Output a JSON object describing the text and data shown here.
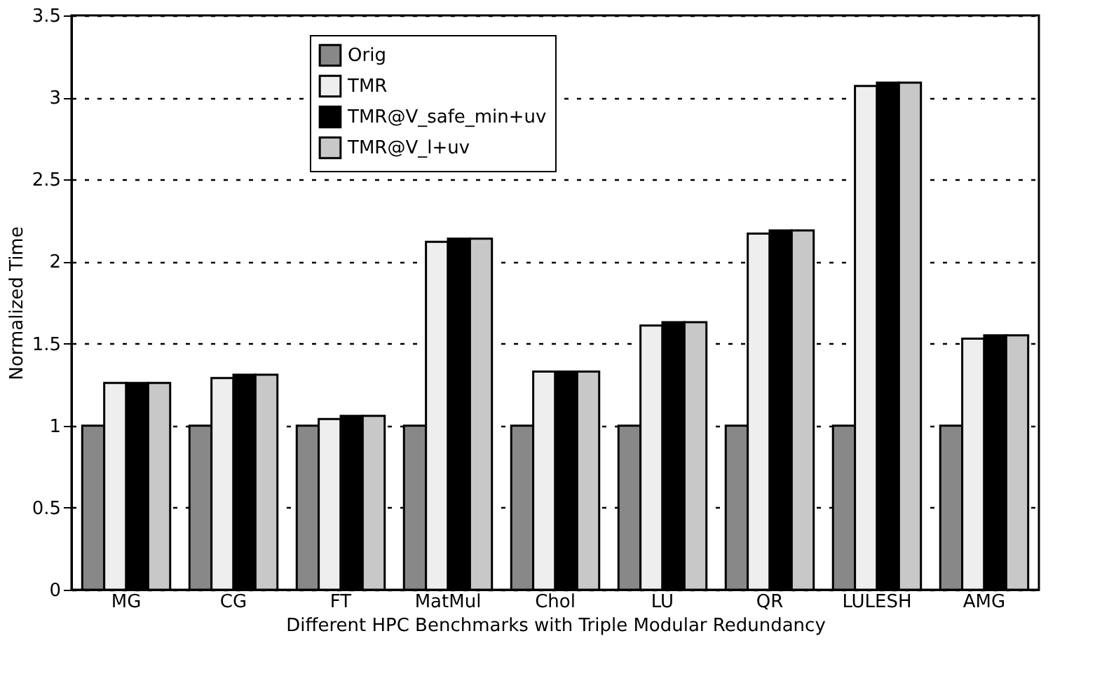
{
  "chart_data": {
    "type": "bar",
    "xlabel": "Different HPC Benchmarks with Triple Modular Redundancy",
    "ylabel": "Normalized Time",
    "categories": [
      "MG",
      "CG",
      "FT",
      "MatMul",
      "Chol",
      "LU",
      "QR",
      "LULESH",
      "AMG"
    ],
    "series": [
      {
        "name": "Orig",
        "color": "#888888",
        "values": [
          1,
          1,
          1,
          1,
          1,
          1,
          1,
          1,
          1
        ]
      },
      {
        "name": "TMR",
        "color": "#eeeeee",
        "values": [
          1.26,
          1.29,
          1.04,
          2.12,
          1.33,
          1.61,
          2.17,
          3.07,
          1.53
        ]
      },
      {
        "name": "TMR@V_safe_min+uv",
        "color": "#000000",
        "values": [
          1.26,
          1.31,
          1.06,
          2.14,
          1.33,
          1.63,
          2.19,
          3.09,
          1.55
        ]
      },
      {
        "name": "TMR@V_l+uv",
        "color": "#c8c8c8",
        "values": [
          1.26,
          1.31,
          1.06,
          2.14,
          1.33,
          1.63,
          2.19,
          3.09,
          1.55
        ]
      }
    ],
    "ylim": [
      0,
      3.5
    ],
    "yticks": [
      0,
      0.5,
      1,
      1.5,
      2,
      2.5,
      3,
      3.5
    ],
    "grid": "y",
    "legend": "top left"
  }
}
